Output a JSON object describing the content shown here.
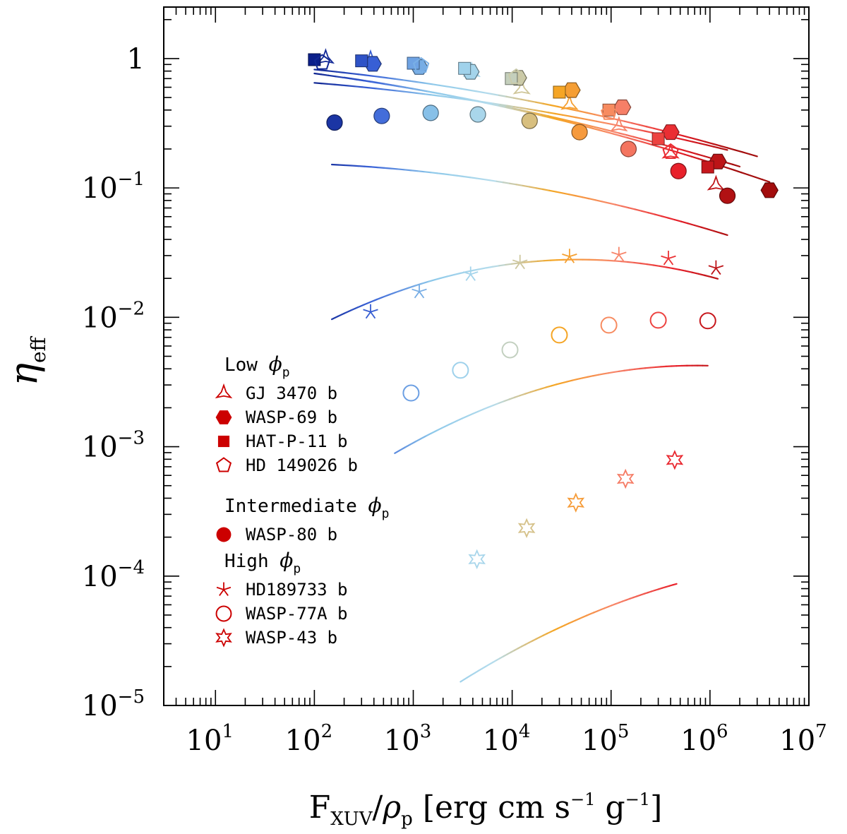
{
  "chart_data": {
    "type": "scatter",
    "title": "",
    "xlabel": {
      "main": "F",
      "sub": "XUV",
      "slash": "/",
      "greek": "ρ",
      "greek_sub": "p",
      "unit_start": " [erg cm s",
      "exp1": "−1",
      "unit_mid": " g",
      "exp2": "−1",
      "unit_end": "]"
    },
    "ylabel": {
      "main": "η",
      "sub": "eff"
    },
    "x_scale": "log",
    "y_scale": "log",
    "xlim": [
      3,
      10000000
    ],
    "ylim": [
      1e-05,
      2.5
    ],
    "x_ticks": [
      {
        "value": 10,
        "base": "10",
        "exp": "1"
      },
      {
        "value": 100,
        "base": "10",
        "exp": "2"
      },
      {
        "value": 1000,
        "base": "10",
        "exp": "3"
      },
      {
        "value": 10000,
        "base": "10",
        "exp": "4"
      },
      {
        "value": 100000,
        "base": "10",
        "exp": "5"
      },
      {
        "value": 1000000,
        "base": "10",
        "exp": "6"
      },
      {
        "value": 10000000,
        "base": "10",
        "exp": "7"
      }
    ],
    "y_ticks": [
      {
        "value": 1,
        "base": "1",
        "exp": ""
      },
      {
        "value": 0.1,
        "base": "10",
        "exp": "−1"
      },
      {
        "value": 0.01,
        "base": "10",
        "exp": "−2"
      },
      {
        "value": 0.001,
        "base": "10",
        "exp": "−3"
      },
      {
        "value": 0.0001,
        "base": "10",
        "exp": "−4"
      },
      {
        "value": 1e-05,
        "base": "10",
        "exp": "−5"
      }
    ],
    "color_scale": [
      "#0b1f8a",
      "#3a62d8",
      "#8ec9ea",
      "#b5dcec",
      "#f5a623",
      "#f7866b",
      "#e8202a",
      "#a30d0d"
    ],
    "series": [
      {
        "name": "GJ 3470 b",
        "group": "Low",
        "marker": "tri-star",
        "x": [
          130,
          370,
          3900,
          12500,
          38000,
          120000,
          400000,
          1150000
        ],
        "y": [
          1.0,
          0.98,
          0.79,
          0.58,
          0.44,
          0.3,
          0.185,
          0.105
        ],
        "fit": {
          "x": [
            100,
            3000000
          ],
          "a": 0.0,
          "b": -0.0092,
          "c": -0.0166
        }
      },
      {
        "name": "WASP-69 b",
        "group": "Low",
        "marker": "hexagon",
        "x": [
          390,
          1150,
          3800,
          11500,
          40000,
          130000,
          400000,
          1200000,
          4000000
        ],
        "y": [
          0.91,
          0.86,
          0.79,
          0.71,
          0.57,
          0.42,
          0.27,
          0.16,
          0.096
        ],
        "fit": {
          "x": [
            200,
            4000000
          ],
          "a": 0.02,
          "b": -0.032,
          "c": -0.0175
        }
      },
      {
        "name": "HAT-P-11 b",
        "group": "Low",
        "marker": "square",
        "x": [
          100,
          300,
          1000,
          3300,
          9800,
          30000,
          95000,
          300000,
          950000
        ],
        "y": [
          0.98,
          0.96,
          0.92,
          0.84,
          0.7,
          0.55,
          0.4,
          0.24,
          0.145
        ],
        "fit": {
          "x": [
            100,
            2000000
          ],
          "a": 0.037,
          "b": -0.047,
          "c": -0.0145
        }
      },
      {
        "name": "HD 149026 b",
        "group": "Low",
        "marker": "pentagon",
        "x": [
          120,
          1200,
          11000,
          95000,
          400000
        ],
        "y": [
          0.93,
          0.88,
          0.72,
          0.38,
          0.19
        ],
        "fit": null
      },
      {
        "name": "WASP-80 b",
        "group": "Intermediate",
        "marker": "circle",
        "x": [
          160,
          480,
          1500,
          4500,
          15000,
          48000,
          150000,
          480000,
          1500000
        ],
        "y": [
          0.32,
          0.36,
          0.38,
          0.37,
          0.33,
          0.27,
          0.2,
          0.135,
          0.087
        ],
        "fit": {
          "x": [
            150,
            1500000
          ],
          "a": -0.86,
          "b": 0.0733,
          "c": -0.0251
        }
      },
      {
        "name": "",
        "group": "Intermediate",
        "marker": "none",
        "x": [],
        "y": [],
        "fit": {
          "x": [
            100,
            1500000
          ],
          "a": -0.127,
          "b": 0.0,
          "c": -0.0152
        }
      },
      {
        "name": "HD189733 b",
        "group": "High",
        "marker": "asterisk",
        "x": [
          370,
          1150,
          3800,
          12000,
          38000,
          120000,
          380000,
          1150000
        ],
        "y": [
          0.011,
          0.0158,
          0.0215,
          0.0265,
          0.0295,
          0.0305,
          0.0285,
          0.024
        ],
        "fit": {
          "x": [
            150,
            1200000
          ],
          "a": -3.174,
          "b": 0.6944,
          "c": -0.0744
        }
      },
      {
        "name": "WASP-77A b",
        "group": "High",
        "marker": "open-circle",
        "x": [
          950,
          3000,
          9500,
          30000,
          95000,
          300000,
          950000
        ],
        "y": [
          0.0026,
          0.0039,
          0.0056,
          0.0073,
          0.0087,
          0.0095,
          0.0094
        ],
        "fit": {
          "x": [
            650,
            950000
          ],
          "a": -4.878,
          "b": 0.8547,
          "c": -0.0729
        }
      },
      {
        "name": "WASP-43 b",
        "group": "High",
        "marker": "six-star",
        "x": [
          4400,
          14000,
          44000,
          140000,
          440000
        ],
        "y": [
          0.000135,
          0.000235,
          0.00037,
          0.000565,
          0.00079
        ],
        "fit": {
          "x": [
            3000,
            460000
          ],
          "a": -7.21,
          "b": 0.8983,
          "c": -0.0604
        }
      }
    ],
    "legend": {
      "placement": "lower-left",
      "groups": [
        {
          "title_prefix": "Low ",
          "entries": [
            {
              "label": "GJ 3470 b",
              "marker": "tri-star"
            },
            {
              "label": "WASP-69 b",
              "marker": "hexagon"
            },
            {
              "label": "HAT-P-11 b",
              "marker": "square"
            },
            {
              "label": "HD 149026 b",
              "marker": "pentagon"
            }
          ]
        },
        {
          "title_prefix": "Intermediate ",
          "entries": [
            {
              "label": "WASP-80 b",
              "marker": "circle"
            }
          ]
        },
        {
          "title_prefix": "High ",
          "entries": [
            {
              "label": "HD189733 b",
              "marker": "asterisk"
            },
            {
              "label": "WASP-77A b",
              "marker": "open-circle"
            },
            {
              "label": "WASP-43 b",
              "marker": "six-star"
            }
          ]
        }
      ],
      "symbol_greek": "ϕ",
      "symbol_sub": "p",
      "marker_color": "#cc0000"
    }
  }
}
